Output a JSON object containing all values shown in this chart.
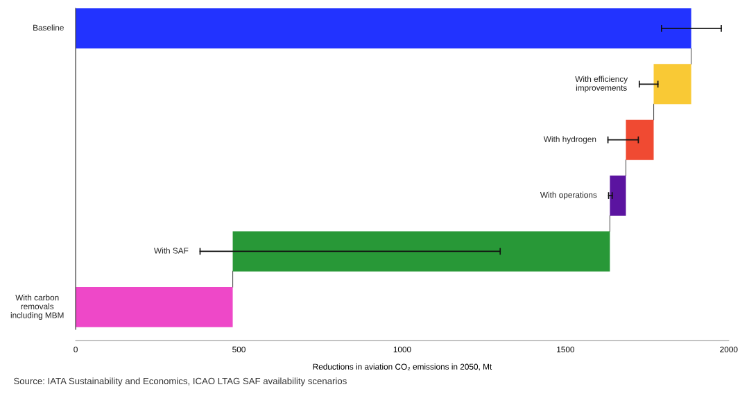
{
  "chart_data": {
    "type": "bar",
    "orientation": "horizontal",
    "categories": [
      "Baseline",
      "With efficiency improvements",
      "With hydrogen",
      "With operations",
      "With SAF",
      "With carbon removals including MBM"
    ],
    "values": [
      1885,
      115,
      85,
      49,
      1155,
      481
    ],
    "base": [
      0,
      1770,
      1685,
      1636,
      481,
      0
    ],
    "colors": [
      "#2233ff",
      "#f9c935",
      "#f04a32",
      "#5b14a0",
      "#289837",
      "#ee48c8"
    ],
    "errors": [
      [
        1794,
        1977
      ],
      [
        1726,
        1783
      ],
      [
        1630,
        1723
      ],
      [
        1632,
        1643
      ],
      [
        381,
        1300
      ],
      null
    ],
    "xlim": [
      0,
      2000
    ],
    "xticks": [
      0,
      500,
      1000,
      1500,
      2000
    ],
    "xlabel": "Reductions in aviation CO₂ emissions in 2050, Mt",
    "annotations": [
      "Source: IATA Sustainability and Economics, ICAO LTAG SAF availability scenarios"
    ],
    "grid": false,
    "legend": false
  }
}
